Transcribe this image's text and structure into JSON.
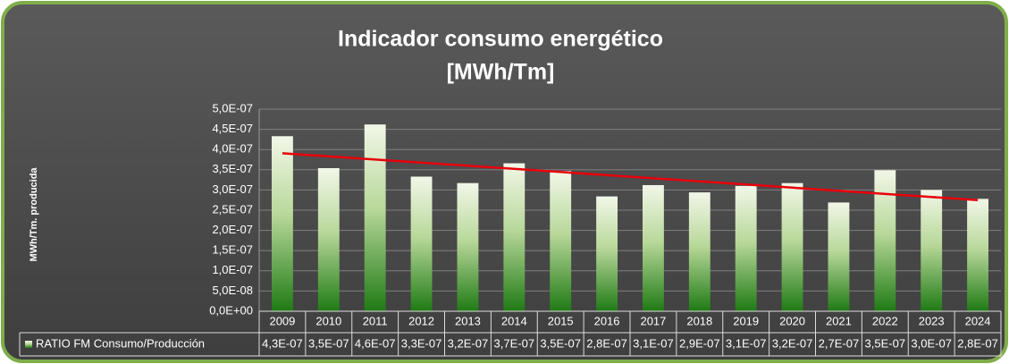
{
  "chart_data": {
    "type": "bar",
    "title_lines": [
      "Indicador consumo energético",
      "[MWh/Tm]"
    ],
    "y_label": "MWh/Tm. producida",
    "categories": [
      "2009",
      "2010",
      "2011",
      "2012",
      "2013",
      "2014",
      "2015",
      "2016",
      "2017",
      "2018",
      "2019",
      "2020",
      "2021",
      "2022",
      "2023",
      "2024"
    ],
    "series": [
      {
        "name": "RATIO FM Consumo/Producción",
        "color": "#3a8a2a",
        "values": [
          4.33e-07,
          3.54e-07,
          4.62e-07,
          3.33e-07,
          3.17e-07,
          3.66e-07,
          3.47e-07,
          2.84e-07,
          3.12e-07,
          2.94e-07,
          3.1e-07,
          3.17e-07,
          2.69e-07,
          3.49e-07,
          3e-07,
          2.78e-07
        ],
        "value_labels": [
          "4,3E-07",
          "3,5E-07",
          "4,6E-07",
          "3,3E-07",
          "3,2E-07",
          "3,7E-07",
          "3,5E-07",
          "2,8E-07",
          "3,1E-07",
          "2,9E-07",
          "3,1E-07",
          "3,2E-07",
          "2,7E-07",
          "3,5E-07",
          "3,0E-07",
          "2,8E-07"
        ]
      }
    ],
    "ylim": [
      0,
      5e-07
    ],
    "yticks": [
      {
        "value": 0,
        "label": "0,0E+00"
      },
      {
        "value": 5e-08,
        "label": "5,0E-08"
      },
      {
        "value": 1e-07,
        "label": "1,0E-07"
      },
      {
        "value": 1.5e-07,
        "label": "1,5E-07"
      },
      {
        "value": 2e-07,
        "label": "2,0E-07"
      },
      {
        "value": 2.5e-07,
        "label": "2,5E-07"
      },
      {
        "value": 3e-07,
        "label": "3,0E-07"
      },
      {
        "value": 3.5e-07,
        "label": "3,5E-07"
      },
      {
        "value": 4e-07,
        "label": "4,0E-07"
      },
      {
        "value": 4.5e-07,
        "label": "4,5E-07"
      },
      {
        "value": 5e-07,
        "label": "5,0E-07"
      }
    ],
    "grid": true,
    "trendline": true,
    "trendline_color": "#e8000b",
    "data_table": true
  }
}
